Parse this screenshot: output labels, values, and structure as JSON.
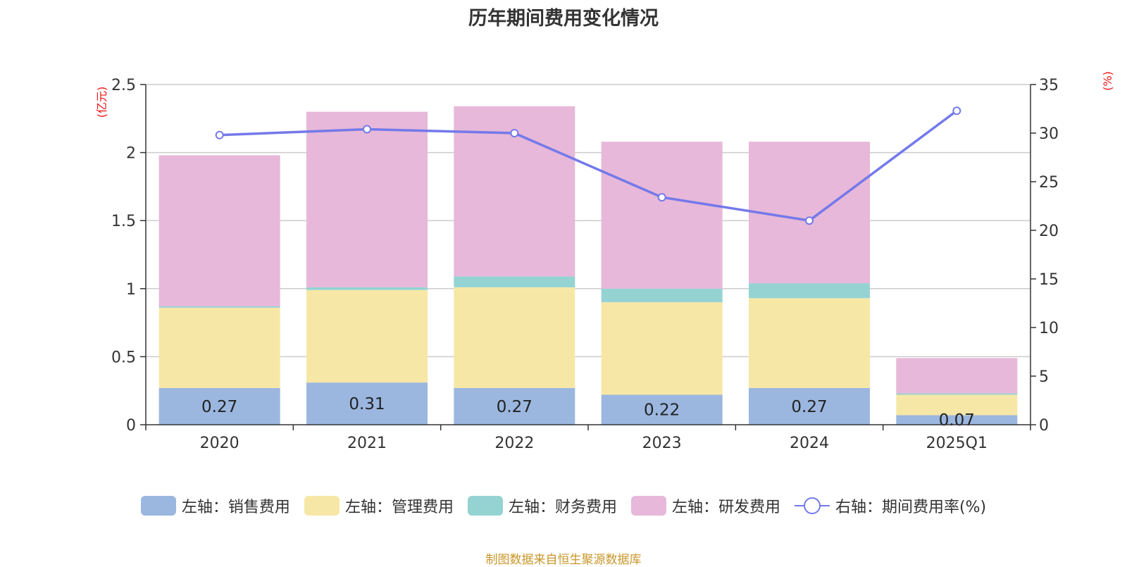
{
  "title": "历年期间费用变化情况",
  "source_note": "制图数据来自恒生聚源数据库",
  "chart_data": {
    "type": "bar",
    "stacked": true,
    "categories": [
      "2020",
      "2021",
      "2022",
      "2023",
      "2024",
      "2025Q1"
    ],
    "left_axis": {
      "unit_label": "(亿元)",
      "ylim": [
        0,
        2.5
      ],
      "ticks": [
        "0",
        "0.5",
        "1",
        "1.5",
        "2",
        "2.5"
      ]
    },
    "right_axis": {
      "unit_label": "(%)",
      "ylim": [
        0,
        35
      ],
      "ticks": [
        "0",
        "5",
        "10",
        "15",
        "20",
        "25",
        "30",
        "35"
      ]
    },
    "grid": true,
    "legend_position": "bottom",
    "series": [
      {
        "name": "左轴：销售费用",
        "axis": "left",
        "kind": "bar",
        "color": "#9bb7e0",
        "values": [
          0.27,
          0.31,
          0.27,
          0.22,
          0.27,
          0.07
        ],
        "data_labels": [
          "0.27",
          "0.31",
          "0.27",
          "0.22",
          "0.27",
          "0.07"
        ]
      },
      {
        "name": "左轴：管理费用",
        "axis": "left",
        "kind": "bar",
        "color": "#f7e7a6",
        "values": [
          0.59,
          0.68,
          0.74,
          0.68,
          0.66,
          0.15
        ]
      },
      {
        "name": "左轴：财务费用",
        "axis": "left",
        "kind": "bar",
        "color": "#95d3d3",
        "values": [
          0.01,
          0.02,
          0.08,
          0.1,
          0.11,
          0.01
        ]
      },
      {
        "name": "左轴：研发费用",
        "axis": "left",
        "kind": "bar",
        "color": "#e7b8d9",
        "values": [
          1.11,
          1.29,
          1.25,
          1.08,
          1.04,
          0.26
        ]
      },
      {
        "name": "右轴：期间费用率(%)",
        "axis": "right",
        "kind": "line",
        "color": "#7479ea",
        "values": [
          29.8,
          30.4,
          30.0,
          23.4,
          21.0,
          32.3
        ]
      }
    ]
  }
}
